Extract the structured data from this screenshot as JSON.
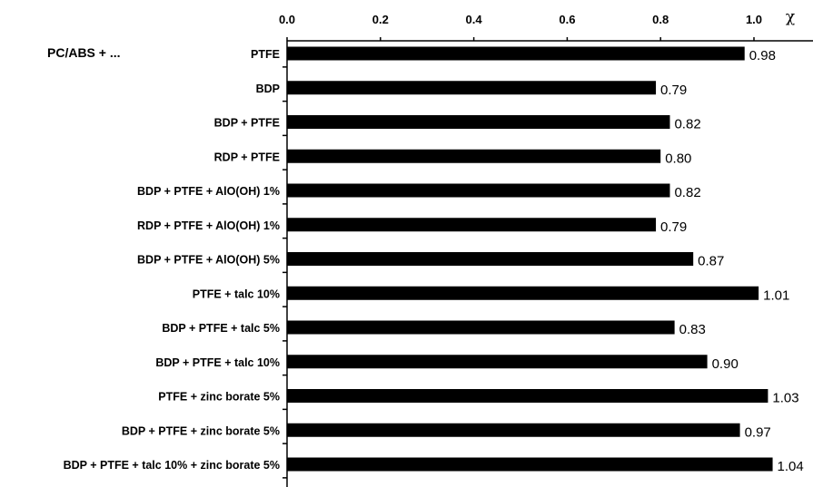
{
  "chart_data": {
    "type": "bar",
    "orientation": "horizontal",
    "group_label": "PC/ABS + ...",
    "xlabel": "χ",
    "ylabel": "",
    "xlim": [
      0.0,
      1.1
    ],
    "xticks": [
      "0.0",
      "0.2",
      "0.4",
      "0.6",
      "0.8",
      "1.0"
    ],
    "x_axis_position": "top",
    "grid": false,
    "categories": [
      "PTFE",
      "BDP",
      "BDP + PTFE",
      "RDP + PTFE",
      "BDP + PTFE + AlO(OH) 1%",
      "RDP + PTFE + AlO(OH) 1%",
      "BDP + PTFE + AlO(OH) 5%",
      "PTFE + talc 10%",
      "BDP + PTFE + talc 5%",
      "BDP + PTFE + talc 10%",
      "PTFE + zinc borate 5%",
      "BDP + PTFE + zinc borate 5%",
      "BDP + PTFE + talc 10% + zinc borate 5%"
    ],
    "values": [
      0.98,
      0.79,
      0.82,
      0.8,
      0.82,
      0.79,
      0.87,
      1.01,
      0.83,
      0.9,
      1.03,
      0.97,
      1.04
    ],
    "value_labels": [
      "0.98",
      "0.79",
      "0.82",
      "0.80",
      "0.82",
      "0.79",
      "0.87",
      "1.01",
      "0.83",
      "0.90",
      "1.03",
      "0.97",
      "1.04"
    ],
    "bar_color": "#000000"
  }
}
